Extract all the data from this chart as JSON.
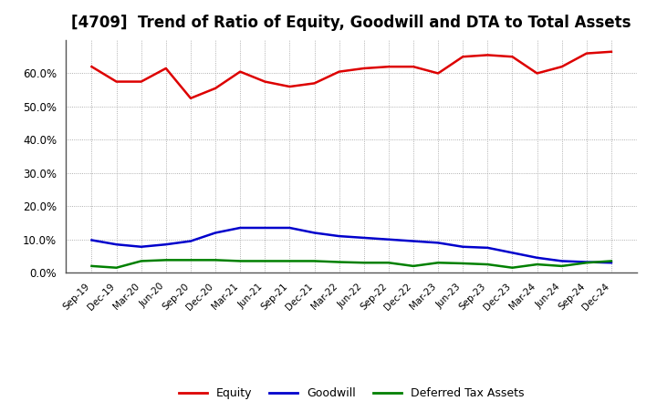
{
  "title": "[4709]  Trend of Ratio of Equity, Goodwill and DTA to Total Assets",
  "x_labels": [
    "Sep-19",
    "Dec-19",
    "Mar-20",
    "Jun-20",
    "Sep-20",
    "Dec-20",
    "Mar-21",
    "Jun-21",
    "Sep-21",
    "Dec-21",
    "Mar-22",
    "Jun-22",
    "Sep-22",
    "Dec-22",
    "Mar-23",
    "Jun-23",
    "Sep-23",
    "Dec-23",
    "Mar-24",
    "Jun-24",
    "Sep-24",
    "Dec-24"
  ],
  "equity": [
    62.0,
    57.5,
    57.5,
    61.5,
    52.5,
    55.5,
    60.5,
    57.5,
    56.0,
    57.0,
    60.5,
    61.5,
    62.0,
    62.0,
    60.0,
    65.0,
    65.5,
    65.0,
    60.0,
    62.0,
    66.0,
    66.5
  ],
  "goodwill": [
    9.8,
    8.5,
    7.8,
    8.5,
    9.5,
    12.0,
    13.5,
    13.5,
    13.5,
    12.0,
    11.0,
    10.5,
    10.0,
    9.5,
    9.0,
    7.8,
    7.5,
    6.0,
    4.5,
    3.5,
    3.2,
    3.0
  ],
  "dta": [
    2.0,
    1.5,
    3.5,
    3.8,
    3.8,
    3.8,
    3.5,
    3.5,
    3.5,
    3.5,
    3.2,
    3.0,
    3.0,
    2.0,
    3.0,
    2.8,
    2.5,
    1.5,
    2.5,
    2.0,
    3.0,
    3.5
  ],
  "equity_color": "#dd0000",
  "goodwill_color": "#0000cc",
  "dta_color": "#008000",
  "ylim": [
    0,
    70
  ],
  "yticks": [
    0,
    10,
    20,
    30,
    40,
    50,
    60
  ],
  "background_color": "#ffffff",
  "plot_bg_color": "#ffffff",
  "grid_color": "#999999",
  "title_fontsize": 12,
  "legend_labels": [
    "Equity",
    "Goodwill",
    "Deferred Tax Assets"
  ]
}
